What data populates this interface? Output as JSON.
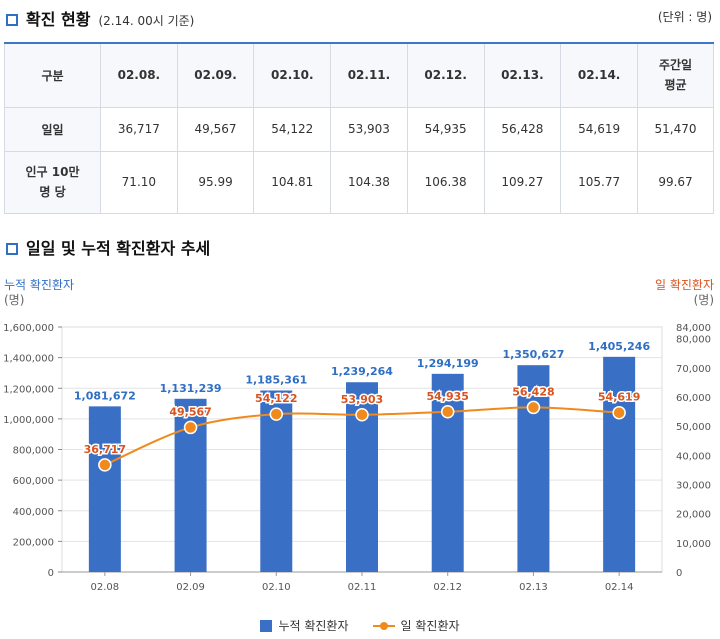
{
  "section1": {
    "title": "확진 현황",
    "subtitle": "(2.14. 00시 기준)",
    "unit": "(단위 : 명)"
  },
  "table": {
    "header": [
      "구분",
      "02.08.",
      "02.09.",
      "02.10.",
      "02.11.",
      "02.12.",
      "02.13.",
      "02.14.",
      "주간일\n평균"
    ],
    "rows": [
      {
        "label": "일일",
        "values": [
          "36,717",
          "49,567",
          "54,122",
          "53,903",
          "54,935",
          "56,428",
          "54,619",
          "51,470"
        ]
      },
      {
        "label": "인구 10만\n명 당",
        "values": [
          "71.10",
          "95.99",
          "104.81",
          "104.38",
          "106.38",
          "109.27",
          "105.77",
          "99.67"
        ]
      }
    ]
  },
  "section2": {
    "title": "일일 및 누적 확진환자 추세"
  },
  "chart_data": {
    "type": "bar",
    "categories": [
      "02.08",
      "02.09",
      "02.10",
      "02.11",
      "02.12",
      "02.13",
      "02.14"
    ],
    "series": [
      {
        "name": "누적 확진환자",
        "type": "bar",
        "axis": "left",
        "color": "#3a6fc6",
        "values": [
          1081672,
          1131239,
          1185361,
          1239264,
          1294199,
          1350627,
          1405246
        ],
        "labels": [
          "1,081,672",
          "1,131,239",
          "1,185,361",
          "1,239,264",
          "1,294,199",
          "1,350,627",
          "1,405,246"
        ]
      },
      {
        "name": "일 확진환자",
        "type": "line",
        "axis": "right",
        "color": "#f08a1c",
        "values": [
          36717,
          49567,
          54122,
          53903,
          54935,
          56428,
          54619
        ],
        "labels": [
          "36,717",
          "49,567",
          "54,122",
          "53,903",
          "54,935",
          "56,428",
          "54,619"
        ]
      }
    ],
    "left_axis": {
      "title": "누적 확진환자",
      "unit": "(명)",
      "ylim": [
        0,
        1600000
      ],
      "ticks": [
        0,
        200000,
        400000,
        600000,
        800000,
        1000000,
        1200000,
        1400000,
        1600000
      ],
      "tick_labels": [
        "0",
        "200,000",
        "400,000",
        "600,000",
        "800,000",
        "1,000,000",
        "1,200,000",
        "1,400,000",
        "1,600,000"
      ]
    },
    "right_axis": {
      "title": "일 확진환자",
      "unit": "(명)",
      "ylim": [
        0,
        84000
      ],
      "ticks": [
        0,
        10000,
        20000,
        30000,
        40000,
        50000,
        60000,
        70000,
        80000,
        84000
      ],
      "tick_labels": [
        "0",
        "10,000",
        "20,000",
        "30,000",
        "40,000",
        "50,000",
        "60,000",
        "70,000",
        "80,000",
        "84,000"
      ]
    },
    "grid": true,
    "legend_position": "bottom",
    "colors": {
      "bar_label": "#2f6fc4",
      "line_label": "#d9531e"
    }
  }
}
